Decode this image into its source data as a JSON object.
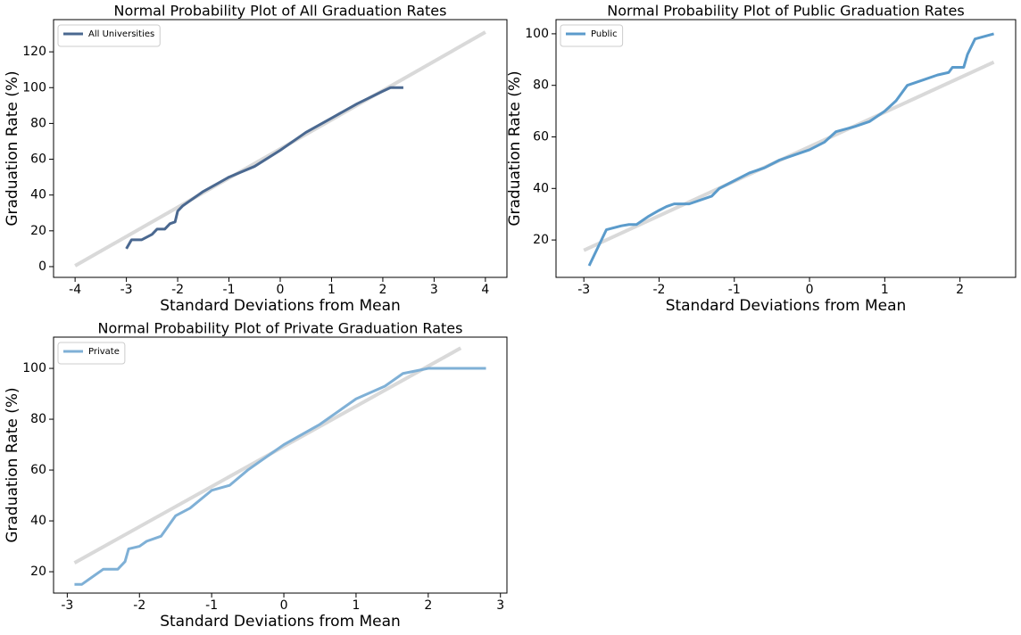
{
  "chart_data": [
    {
      "type": "line",
      "title": "Normal Probability Plot of All Graduation Rates",
      "x_label": "Standard Deviations from Mean",
      "y_label": "Graduation Rate (%)",
      "xlim": [
        -4.42,
        4.42
      ],
      "ylim": [
        -6,
        138
      ],
      "xticks": [
        -4,
        -3,
        -2,
        -1,
        0,
        1,
        2,
        3,
        4
      ],
      "yticks": [
        0,
        20,
        40,
        60,
        80,
        100,
        120
      ],
      "legend": "upper left",
      "series": [
        {
          "color": "#d9d9d9",
          "x": [
            -4,
            4
          ],
          "values": [
            0.5,
            131
          ]
        },
        {
          "name": "All Universities",
          "color": "#4a6890",
          "x": [
            -3,
            -2.9,
            -2.7,
            -2.5,
            -2.4,
            -2.25,
            -2.15,
            -2.05,
            -2.0,
            -1.9,
            -1.75,
            -1.5,
            -1.25,
            -1,
            -0.5,
            0,
            0.5,
            1,
            1.5,
            2,
            2.15,
            2.4
          ],
          "values": [
            10,
            15,
            15,
            18,
            21,
            21,
            24,
            25,
            31,
            34,
            37,
            42,
            46,
            50,
            56,
            65,
            75,
            83,
            91,
            98,
            100,
            100
          ]
        }
      ]
    },
    {
      "type": "line",
      "title": "Normal Probability Plot of Public Graduation Rates",
      "x_label": "Standard Deviations from Mean",
      "y_label": "Graduation Rate (%)",
      "xlim": [
        -3.37,
        2.74
      ],
      "ylim": [
        5.5,
        105.5
      ],
      "xticks": [
        -3,
        -2,
        -1,
        0,
        1,
        2
      ],
      "yticks": [
        20,
        40,
        60,
        80,
        100
      ],
      "legend": "upper left",
      "series": [
        {
          "color": "#d9d9d9",
          "x": [
            -3,
            2.45
          ],
          "values": [
            16,
            89
          ]
        },
        {
          "name": "Public",
          "color": "#5b9bcb",
          "x": [
            -2.93,
            -2.7,
            -2.5,
            -2.4,
            -2.3,
            -2.15,
            -2.0,
            -1.9,
            -1.8,
            -1.6,
            -1.5,
            -1.3,
            -1.2,
            -1.0,
            -0.8,
            -0.6,
            -0.4,
            -0.2,
            0,
            0.2,
            0.35,
            0.6,
            0.8,
            1.0,
            1.15,
            1.3,
            1.5,
            1.7,
            1.85,
            1.9,
            2.05,
            2.1,
            2.2,
            2.45
          ],
          "values": [
            10,
            24,
            25.5,
            26,
            26,
            29,
            31.5,
            33,
            34,
            34,
            35,
            37,
            40,
            43,
            46,
            48,
            51,
            53,
            55,
            58,
            62,
            64,
            66,
            70,
            74,
            80,
            82,
            84,
            85,
            87,
            87,
            92,
            98,
            100
          ]
        }
      ]
    },
    {
      "type": "line",
      "title": "Normal Probability Plot of Private Graduation Rates",
      "x_label": "Standard Deviations from Mean",
      "y_label": "Graduation Rate (%)",
      "xlim": [
        -3.19,
        3.09
      ],
      "ylim": [
        11.6,
        112.3
      ],
      "xticks": [
        -3,
        -2,
        -1,
        0,
        1,
        2,
        3
      ],
      "yticks": [
        20,
        40,
        60,
        80,
        100
      ],
      "legend": "upper left",
      "series": [
        {
          "color": "#d9d9d9",
          "x": [
            -2.9,
            2.45
          ],
          "values": [
            23.5,
            108
          ]
        },
        {
          "name": "Private",
          "color": "#7fb0d6",
          "x": [
            -2.9,
            -2.8,
            -2.65,
            -2.5,
            -2.3,
            -2.2,
            -2.15,
            -2.0,
            -1.9,
            -1.7,
            -1.6,
            -1.5,
            -1.3,
            -1.0,
            -0.75,
            -0.5,
            0,
            0.5,
            1,
            1.4,
            1.65,
            2.0,
            2.8
          ],
          "values": [
            15,
            15,
            18,
            21,
            21,
            24,
            29,
            30,
            32,
            34,
            38,
            42,
            45,
            52,
            54,
            60,
            70,
            78,
            88,
            93,
            98,
            100,
            100
          ]
        }
      ]
    }
  ]
}
